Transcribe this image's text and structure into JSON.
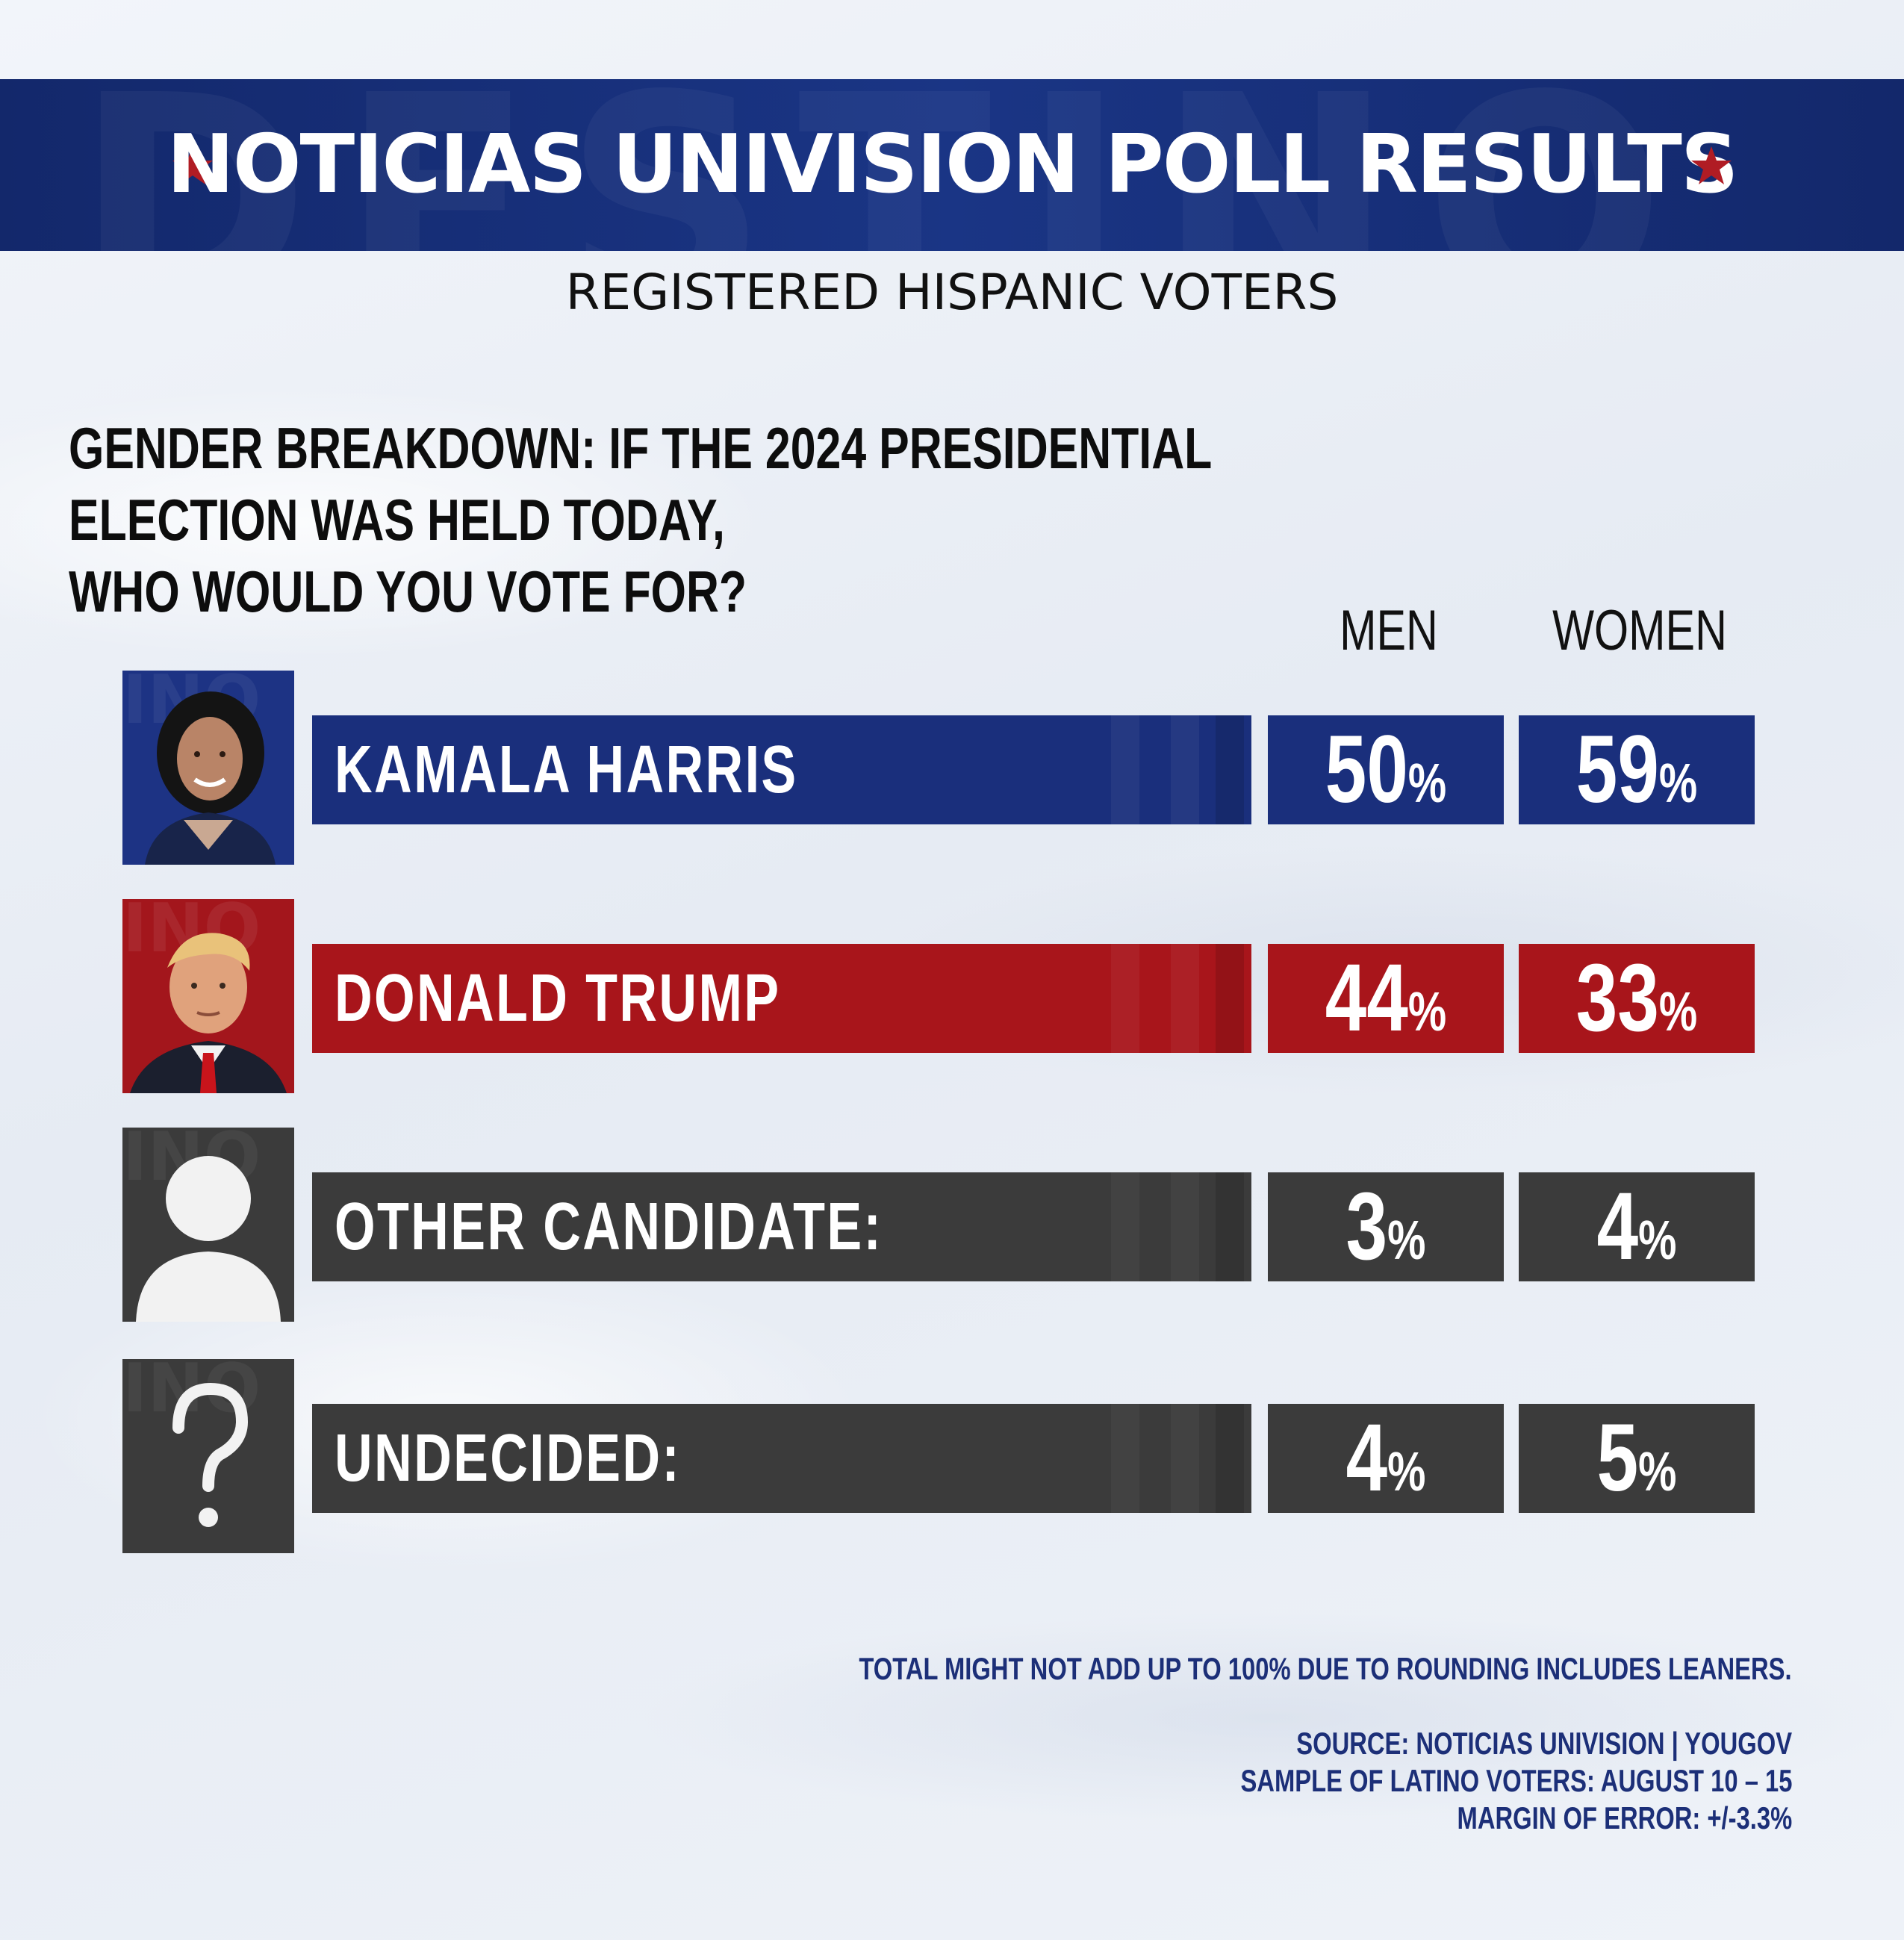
{
  "header": {
    "title": "NOTICIAS UNIVISION POLL RESULTS",
    "icon": "star-icon"
  },
  "subtitle": "REGISTERED HISPANIC VOTERS",
  "question": {
    "line1": "GENDER BREAKDOWN: IF THE 2024 PRESIDENTIAL ELECTION WAS HELD TODAY,",
    "line2": "WHO WOULD YOU VOTE FOR?"
  },
  "columns": {
    "men": "MEN",
    "women": "WOMEN"
  },
  "rows": [
    {
      "label": "KAMALA HARRIS",
      "men": "50",
      "women": "59",
      "pct": "%",
      "color": "#1a2f7c",
      "image": "kamala-harris-photo"
    },
    {
      "label": "DONALD TRUMP",
      "men": "44",
      "women": "33",
      "pct": "%",
      "color": "#a8151b",
      "image": "donald-trump-photo"
    },
    {
      "label": "OTHER CANDIDATE:",
      "men": "3",
      "women": "4",
      "pct": "%",
      "color": "#3b3b3b",
      "image": "person-silhouette-icon"
    },
    {
      "label": "UNDECIDED:",
      "men": "4",
      "women": "5",
      "pct": "%",
      "color": "#3b3b3b",
      "image": "question-mark-icon"
    }
  ],
  "chart_data": {
    "type": "table",
    "title": "NOTICIAS UNIVISION POLL RESULTS",
    "subtitle": "REGISTERED HISPANIC VOTERS",
    "categories": [
      "KAMALA HARRIS",
      "DONALD TRUMP",
      "OTHER CANDIDATE:",
      "UNDECIDED:"
    ],
    "series": [
      {
        "name": "MEN",
        "values": [
          50,
          44,
          3,
          4
        ]
      },
      {
        "name": "WOMEN",
        "values": [
          59,
          33,
          4,
          5
        ]
      }
    ],
    "unit": "%"
  },
  "footnotes": {
    "rounding": "TOTAL MIGHT NOT ADD UP TO 100% DUE TO ROUNDING INCLUDES LEANERS.",
    "source": "SOURCE: NOTICIAS UNIVISION | YOUGOV",
    "sample": "SAMPLE OF LATINO VOTERS: AUGUST 10 – 15",
    "margin": "MARGIN OF ERROR: +/-3.3%"
  },
  "colors": {
    "header_blue": "#13286b",
    "star_red": "#b01c24",
    "harris_blue": "#1a2f7c",
    "trump_red": "#a8151b",
    "neutral_gray": "#3b3b3b",
    "footnote_blue": "#1c2f78"
  }
}
